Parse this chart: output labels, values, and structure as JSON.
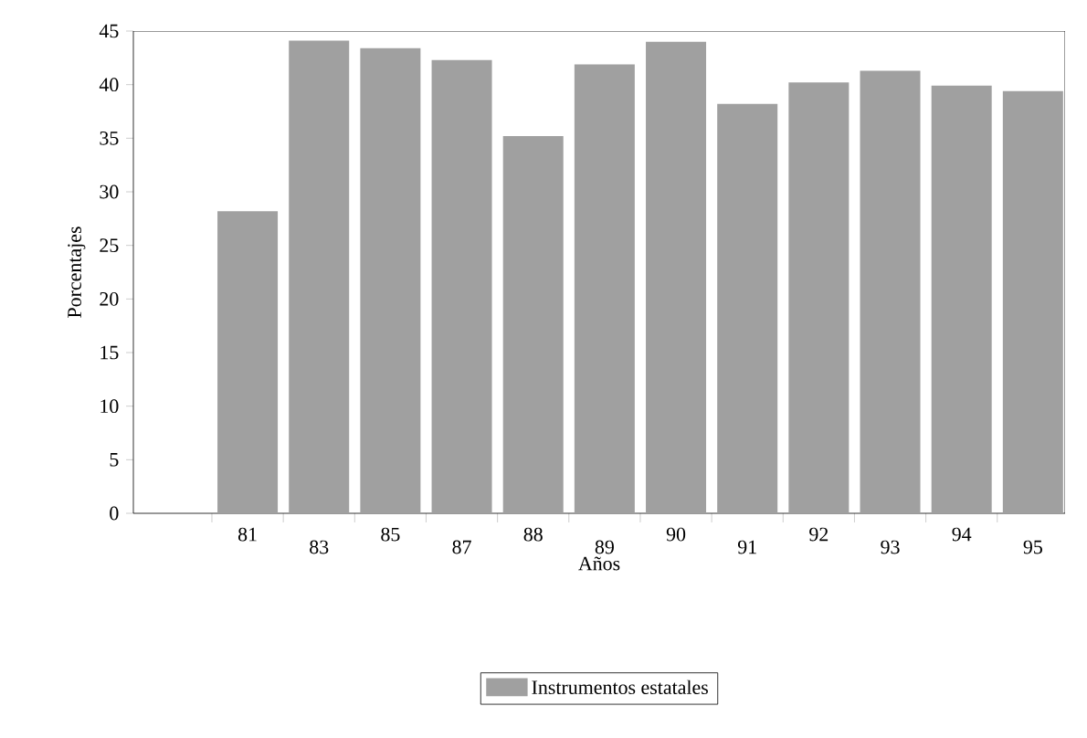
{
  "chart_data": {
    "type": "bar",
    "xlabel": "Años",
    "ylabel": "Porcentajes",
    "categories": [
      "81",
      "83",
      "85",
      "87",
      "88",
      "89",
      "90",
      "91",
      "92",
      "93",
      "94",
      "95"
    ],
    "series": [
      {
        "name": "Instrumentos estatales",
        "color": "#a0a0a0",
        "values": [
          28.2,
          44.1,
          43.4,
          42.3,
          35.2,
          41.9,
          44,
          38.2,
          40.2,
          41.3,
          39.9,
          39.4
        ]
      }
    ],
    "ylim": [
      0,
      45
    ],
    "yticks": [
      0,
      5,
      10,
      15,
      20,
      25,
      30,
      35,
      40,
      45
    ],
    "grid": false,
    "legend": "bottom"
  }
}
